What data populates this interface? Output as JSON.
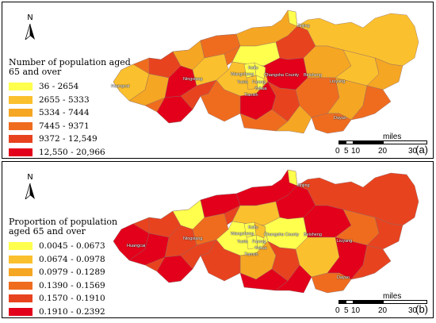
{
  "north_label": "N",
  "panels": [
    {
      "id": "a",
      "tag": "(a)",
      "legend_title": "Number of population aged 65 and over",
      "legend": [
        {
          "label": "36 - 2654",
          "color": "#ffff4d"
        },
        {
          "label": "2655 - 5333",
          "color": "#fbc02d"
        },
        {
          "label": "5334 - 7444",
          "color": "#f5a623"
        },
        {
          "label": "7445 - 9371",
          "color": "#ef6c1f"
        },
        {
          "label": "9372 - 12,549",
          "color": "#e8431f"
        },
        {
          "label": "12,550 - 20,966",
          "color": "#e3001a"
        }
      ]
    },
    {
      "id": "b",
      "tag": "(b)",
      "legend_title": "Proportion of population aged 65 and over",
      "legend": [
        {
          "label": "0.0045 - 0.0673",
          "color": "#ffff4d"
        },
        {
          "label": "0.0674 - 0.0978",
          "color": "#fbc02d"
        },
        {
          "label": "0.0979 - 0.1289",
          "color": "#f5a623"
        },
        {
          "label": "0.1390 - 0.1569",
          "color": "#ef6c1f"
        },
        {
          "label": "0.1570 - 0.1910",
          "color": "#e8431f"
        },
        {
          "label": "0.1910 - 0.2392",
          "color": "#e3001a"
        }
      ]
    }
  ],
  "city_labels": [
    "Jinjing",
    "Huangcai",
    "Ningxiang",
    "Kaifu",
    "Wangcheng",
    "Yuelu",
    "Furong",
    "Yuhua",
    "Tianxin",
    "Changsha County",
    "Beisheng",
    "Liuyang",
    "Dayao"
  ],
  "scale": {
    "unit": "miles",
    "ticks": [
      "0",
      "5",
      "10",
      "20",
      "30"
    ]
  }
}
